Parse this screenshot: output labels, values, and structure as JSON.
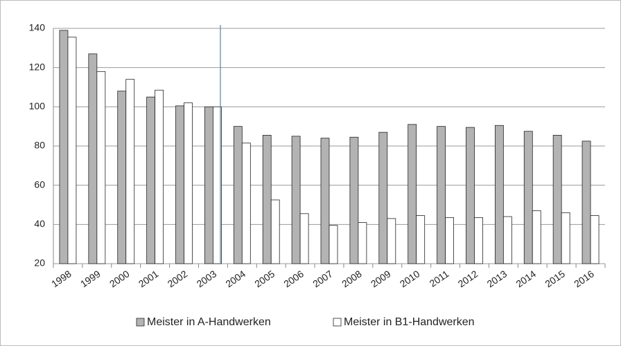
{
  "chart_data": {
    "type": "bar",
    "categories": [
      "1998",
      "1999",
      "2000",
      "2001",
      "2002",
      "2003",
      "2004",
      "2005",
      "2006",
      "2007",
      "2008",
      "2009",
      "2010",
      "2011",
      "2012",
      "2013",
      "2014",
      "2015",
      "2016"
    ],
    "series": [
      {
        "name": "Meister in A-Handwerken",
        "color": "#b3b3b3",
        "values": [
          139,
          127,
          108,
          105,
          100.5,
          100,
          90,
          85.5,
          85,
          84,
          84.5,
          87,
          91,
          90,
          89.5,
          90.5,
          87.5,
          85.5,
          82.5
        ]
      },
      {
        "name": "Meister in B1-Handwerken",
        "color": "#ffffff",
        "values": [
          135.5,
          118,
          114,
          108.5,
          102,
          100,
          81.5,
          52.5,
          45.5,
          39.5,
          41,
          43,
          44.5,
          43.5,
          43.5,
          44,
          47,
          46,
          44.5
        ]
      }
    ],
    "ylim": [
      20,
      140
    ],
    "yticks": [
      20,
      40,
      60,
      80,
      100,
      120,
      140
    ],
    "grid": true,
    "legend": "bottom"
  }
}
